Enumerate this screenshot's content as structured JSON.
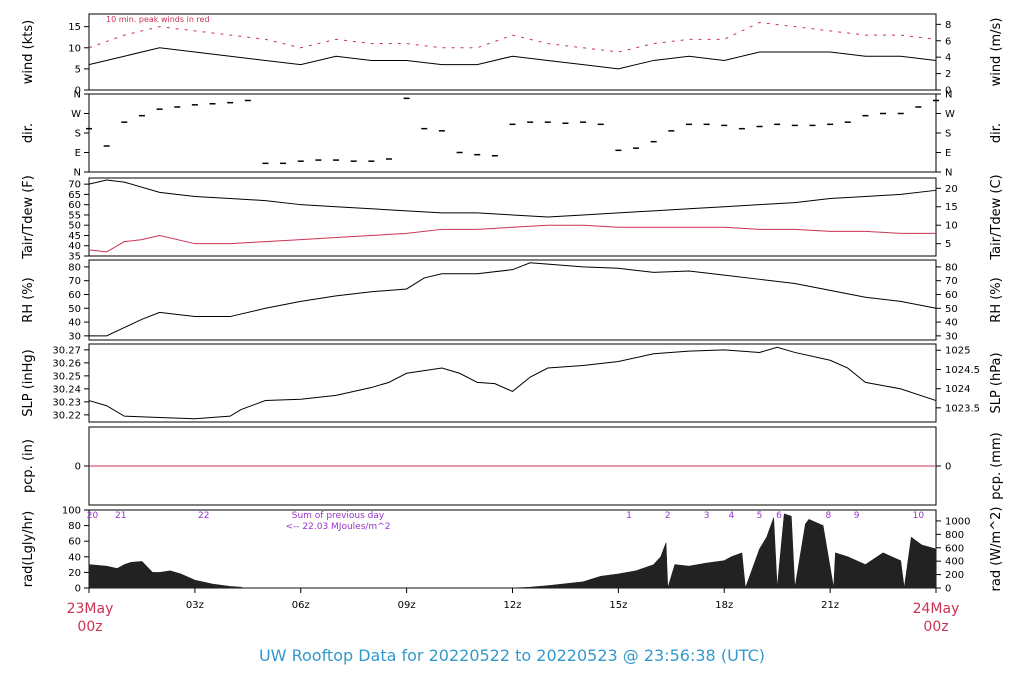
{
  "title": "UW Rooftop Data for 20220522  to  20220523 @ 23:56:38  (UTC)",
  "colors": {
    "text": "#000000",
    "red": "#cc3355",
    "purple": "#9933cc",
    "title": "#3399cc",
    "axis": "#000000"
  },
  "time_axis": {
    "range_hours": [
      0,
      24
    ],
    "ticks": [
      {
        "h": 0,
        "label": ""
      },
      {
        "h": 3,
        "label": "03z"
      },
      {
        "h": 6,
        "label": "06z"
      },
      {
        "h": 9,
        "label": "09z"
      },
      {
        "h": 12,
        "label": "12z"
      },
      {
        "h": 15,
        "label": "15z"
      },
      {
        "h": 18,
        "label": "18z"
      },
      {
        "h": 21,
        "label": "21z"
      },
      {
        "h": 24,
        "label": ""
      }
    ],
    "start_label": [
      "23May",
      "00z"
    ],
    "end_label": [
      "24May",
      "00z"
    ]
  },
  "chart_data": [
    {
      "type": "line",
      "id": "wind",
      "ylabel": "wind (kts)",
      "ylabel_right": "wind (m/s)",
      "ylim": [
        0,
        18
      ],
      "yticks": [
        0,
        5,
        10,
        15
      ],
      "right_ticks": [
        {
          "label": "0",
          "v": 0
        },
        {
          "label": "2",
          "v": 3.89
        },
        {
          "label": "4",
          "v": 7.78
        },
        {
          "label": "6",
          "v": 11.66
        },
        {
          "label": "8",
          "v": 15.55
        }
      ],
      "annotation": "10 min. peak winds in red",
      "series": [
        {
          "color": "#000000",
          "x": [
            0,
            1,
            2,
            3,
            4,
            5,
            6,
            7,
            8,
            9,
            10,
            11,
            12,
            13,
            14,
            15,
            16,
            17,
            18,
            19,
            20,
            21,
            22,
            23,
            24
          ],
          "y": [
            6,
            8,
            10,
            9,
            8,
            7,
            6,
            8,
            7,
            7,
            6,
            6,
            8,
            7,
            6,
            5,
            7,
            8,
            7,
            9,
            9,
            9,
            8,
            8,
            7
          ]
        },
        {
          "color": "#cc3355",
          "style": "dash",
          "x": [
            0,
            1,
            2,
            3,
            4,
            5,
            6,
            7,
            8,
            9,
            10,
            11,
            12,
            13,
            14,
            15,
            16,
            17,
            18,
            19,
            20,
            21,
            22,
            23,
            24
          ],
          "y": [
            10,
            13,
            15,
            14,
            13,
            12,
            10,
            12,
            11,
            11,
            10,
            10,
            13,
            11,
            10,
            9,
            11,
            12,
            12,
            16,
            15,
            14,
            13,
            13,
            12
          ]
        }
      ]
    },
    {
      "type": "scatter",
      "id": "dir",
      "ylabel": "dir.",
      "ylabel_right": "dir.",
      "ylim": [
        0,
        360
      ],
      "ytick_labels": [
        {
          "label": "N",
          "v": 0
        },
        {
          "label": "E",
          "v": 90
        },
        {
          "label": "S",
          "v": 180
        },
        {
          "label": "W",
          "v": 270
        },
        {
          "label": "N",
          "v": 360
        }
      ],
      "right_tick_labels": [
        {
          "label": "N",
          "v": 0
        },
        {
          "label": "E",
          "v": 90
        },
        {
          "label": "S",
          "v": 180
        },
        {
          "label": "W",
          "v": 270
        },
        {
          "label": "N",
          "v": 360
        }
      ],
      "series": [
        {
          "color": "#000000",
          "x": [
            0,
            0.5,
            1,
            1.5,
            2,
            2.5,
            3,
            3.5,
            4,
            4.5,
            5,
            5.5,
            6,
            6.5,
            7,
            7.5,
            8,
            8.5,
            9,
            9.5,
            10,
            10.5,
            11,
            11.5,
            12,
            12.5,
            13,
            13.5,
            14,
            14.5,
            15,
            15.5,
            16,
            16.5,
            17,
            17.5,
            18,
            18.5,
            19,
            19.5,
            20,
            20.5,
            21,
            21.5,
            22,
            22.5,
            23,
            23.5,
            24
          ],
          "y": [
            200,
            120,
            230,
            260,
            290,
            300,
            310,
            315,
            320,
            330,
            40,
            40,
            50,
            55,
            55,
            50,
            50,
            60,
            340,
            200,
            190,
            90,
            80,
            75,
            220,
            230,
            230,
            225,
            230,
            220,
            100,
            110,
            140,
            190,
            220,
            220,
            215,
            200,
            210,
            220,
            215,
            215,
            220,
            230,
            260,
            270,
            270,
            300,
            330
          ]
        }
      ]
    },
    {
      "type": "line",
      "id": "temp",
      "ylabel": "Tair/Tdew (F)",
      "ylabel_right": "Tair/Tdew (C)",
      "ylim": [
        35,
        73
      ],
      "yticks": [
        35,
        40,
        45,
        50,
        55,
        60,
        65,
        70
      ],
      "right_ticks": [
        {
          "label": "5",
          "v": 41
        },
        {
          "label": "10",
          "v": 50
        },
        {
          "label": "15",
          "v": 59
        },
        {
          "label": "20",
          "v": 68
        }
      ],
      "series": [
        {
          "color": "#000000",
          "x": [
            0,
            0.5,
            1,
            2,
            3,
            4,
            5,
            6,
            7,
            8,
            9,
            10,
            11,
            12,
            13,
            14,
            15,
            16,
            17,
            18,
            19,
            20,
            21,
            22,
            23,
            24
          ],
          "y": [
            70,
            72,
            71,
            66,
            64,
            63,
            62,
            60,
            59,
            58,
            57,
            56,
            56,
            55,
            54,
            55,
            56,
            57,
            58,
            59,
            60,
            61,
            63,
            64,
            65,
            67
          ]
        },
        {
          "color": "#cc3355",
          "x": [
            0,
            0.5,
            1,
            1.5,
            2,
            3,
            4,
            5,
            6,
            7,
            8,
            9,
            10,
            11,
            12,
            13,
            14,
            15,
            16,
            17,
            18,
            19,
            20,
            21,
            22,
            23,
            24
          ],
          "y": [
            38,
            37,
            42,
            43,
            45,
            41,
            41,
            42,
            43,
            44,
            45,
            46,
            48,
            48,
            49,
            50,
            50,
            49,
            49,
            49,
            49,
            48,
            48,
            47,
            47,
            46,
            46
          ]
        }
      ]
    },
    {
      "type": "line",
      "id": "rh",
      "ylabel": "RH (%)",
      "ylabel_right": "RH (%)",
      "ylim": [
        27,
        85
      ],
      "yticks": [
        30,
        40,
        50,
        60,
        70,
        80
      ],
      "right_ticks": [
        {
          "label": "30",
          "v": 30
        },
        {
          "label": "40",
          "v": 40
        },
        {
          "label": "50",
          "v": 50
        },
        {
          "label": "60",
          "v": 60
        },
        {
          "label": "70",
          "v": 70
        },
        {
          "label": "80",
          "v": 80
        }
      ],
      "series": [
        {
          "color": "#000000",
          "x": [
            0,
            0.5,
            1,
            1.5,
            2,
            3,
            4,
            5,
            6,
            7,
            8,
            9,
            9.5,
            10,
            11,
            12,
            12.5,
            13,
            14,
            15,
            16,
            17,
            18,
            19,
            20,
            21,
            22,
            23,
            24
          ],
          "y": [
            30,
            30,
            36,
            42,
            47,
            44,
            44,
            50,
            55,
            59,
            62,
            64,
            72,
            75,
            75,
            78,
            83,
            82,
            80,
            79,
            76,
            77,
            74,
            71,
            68,
            63,
            58,
            55,
            50
          ]
        }
      ]
    },
    {
      "type": "line",
      "id": "slp",
      "ylabel": "SLP (inHg)",
      "ylabel_right": "SLP (hPa)",
      "ylim": [
        30.2145,
        30.2745
      ],
      "yticks": [
        30.22,
        30.23,
        30.24,
        30.25,
        30.26,
        30.27
      ],
      "right_ticks": [
        {
          "label": "1023.5",
          "v": 30.2254
        },
        {
          "label": "1024",
          "v": 30.2401
        },
        {
          "label": "1024.5",
          "v": 30.2549
        },
        {
          "label": "1025",
          "v": 30.2697
        }
      ],
      "series": [
        {
          "color": "#000000",
          "x": [
            0,
            0.5,
            1,
            2,
            3,
            4,
            4.3,
            5,
            6,
            7,
            8,
            8.5,
            9,
            10,
            10.5,
            11,
            11.5,
            12,
            12.5,
            13,
            14,
            15,
            16,
            17,
            18,
            19,
            19.5,
            20,
            21,
            21.5,
            22,
            23,
            24
          ],
          "y": [
            30.231,
            30.227,
            30.219,
            30.218,
            30.217,
            30.219,
            30.224,
            30.231,
            30.232,
            30.235,
            30.241,
            30.245,
            30.252,
            30.256,
            30.252,
            30.245,
            30.244,
            30.238,
            30.249,
            30.256,
            30.258,
            30.261,
            30.267,
            30.269,
            30.27,
            30.268,
            30.272,
            30.268,
            30.262,
            30.256,
            30.245,
            30.24,
            30.231
          ]
        }
      ]
    },
    {
      "type": "line",
      "id": "pcp",
      "ylabel": "pcp. (in)",
      "ylabel_right": "pcp. (mm)",
      "ylim": [
        -1,
        1
      ],
      "yticks": [
        0
      ],
      "right_ticks": [
        {
          "label": "0",
          "v": 0
        }
      ],
      "series": [
        {
          "color": "#cc3355",
          "x": [
            0,
            24
          ],
          "y": [
            0,
            0
          ]
        }
      ]
    },
    {
      "type": "area",
      "id": "rad",
      "ylabel": "rad(Lgly/hr)",
      "ylabel_right": "rad (W/m^2)",
      "ylim": [
        0,
        100
      ],
      "yticks": [
        0,
        20,
        40,
        60,
        80,
        100
      ],
      "right_ticks": [
        {
          "label": "0",
          "v": 0
        },
        {
          "label": "200",
          "v": 17.2
        },
        {
          "label": "400",
          "v": 34.4
        },
        {
          "label": "600",
          "v": 51.6
        },
        {
          "label": "800",
          "v": 68.8
        },
        {
          "label": "1000",
          "v": 86
        }
      ],
      "hour_labels": [
        {
          "label": "20",
          "h": 0.1
        },
        {
          "label": "21",
          "h": 0.9
        },
        {
          "label": "22",
          "h": 3.25
        },
        {
          "label": "1",
          "h": 15.3
        },
        {
          "label": "2",
          "h": 16.4
        },
        {
          "label": "3",
          "h": 17.5
        },
        {
          "label": "4",
          "h": 18.2
        },
        {
          "label": "5",
          "h": 19.0
        },
        {
          "label": "6",
          "h": 19.55
        },
        {
          "label": "8",
          "h": 20.95
        },
        {
          "label": "9",
          "h": 21.75
        },
        {
          "label": "10",
          "h": 23.5
        }
      ],
      "annotation": [
        "Sum of previous day",
        "<-- 22.03 MJoules/m^2"
      ],
      "series": [
        {
          "color": "#222222",
          "x": [
            0,
            0.5,
            0.8,
            1,
            1.2,
            1.5,
            1.8,
            2,
            2.3,
            2.6,
            3,
            3.5,
            4,
            4.3,
            4.4,
            12,
            12.5,
            13,
            14,
            14.5,
            15,
            15.5,
            16,
            16.2,
            16.35,
            16.4,
            16.6,
            17,
            17.5,
            18,
            18.2,
            18.5,
            18.6,
            19,
            19.2,
            19.4,
            19.5,
            19.7,
            19.9,
            20,
            20.3,
            20.4,
            20.8,
            21.1,
            21.15,
            21.5,
            22,
            22.5,
            23,
            23.1,
            23.3,
            23.6,
            24
          ],
          "y": [
            30,
            28,
            25,
            30,
            33,
            34,
            20,
            20,
            22,
            18,
            10,
            5,
            2,
            1,
            0,
            0,
            1,
            3,
            8,
            15,
            18,
            22,
            30,
            40,
            58,
            0,
            30,
            28,
            32,
            35,
            40,
            45,
            0,
            50,
            65,
            90,
            0,
            95,
            92,
            0,
            82,
            88,
            80,
            0,
            45,
            40,
            30,
            45,
            35,
            0,
            65,
            55,
            50
          ]
        }
      ]
    }
  ]
}
